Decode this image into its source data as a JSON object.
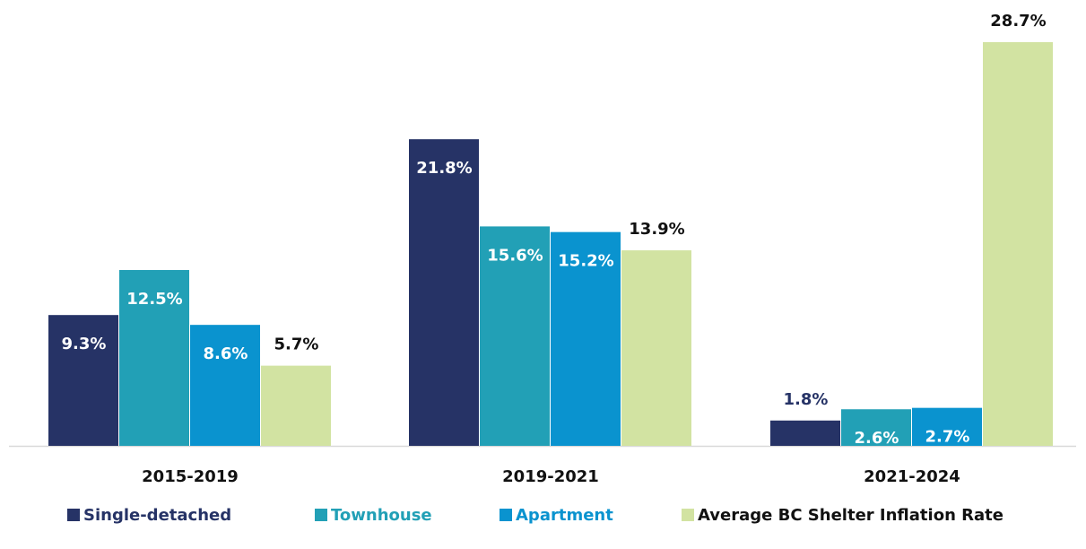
{
  "chart_data": {
    "type": "bar",
    "categories": [
      "2015-2019",
      "2019-2021",
      "2021-2024"
    ],
    "series": [
      {
        "name": "Single-detached",
        "color": "#263366",
        "values": [
          9.3,
          21.8,
          1.8
        ],
        "value_labels": [
          "9.3%",
          "21.8%",
          "1.8%"
        ]
      },
      {
        "name": "Townhouse",
        "color": "#22a0b6",
        "values": [
          12.5,
          15.6,
          2.6
        ],
        "value_labels": [
          "12.5%",
          "15.6%",
          "2.6%"
        ]
      },
      {
        "name": "Apartment",
        "color": "#0a93cf",
        "values": [
          8.6,
          15.2,
          2.7
        ],
        "value_labels": [
          "8.6%",
          "15.2%",
          "2.7%"
        ]
      },
      {
        "name": "Average BC Shelter Inflation Rate",
        "color": "#d2e3a2",
        "values": [
          5.7,
          13.9,
          28.7
        ],
        "value_labels": [
          "5.7%",
          "13.9%",
          "28.7%"
        ]
      }
    ],
    "legend": "bottom"
  }
}
